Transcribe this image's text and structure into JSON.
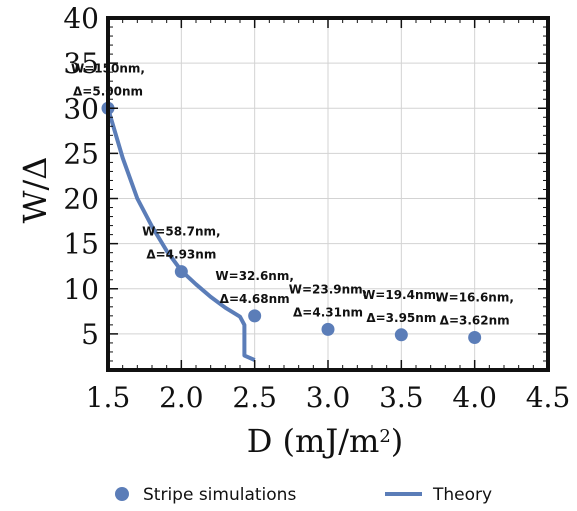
{
  "chart_data": {
    "type": "scatter",
    "xlabel": "D (mJ/m",
    "xlabel_sup": "2",
    "xlabel_close": ")",
    "ylabel": "W/Δ",
    "xlim": [
      1.5,
      4.5
    ],
    "ylim": [
      1,
      40
    ],
    "x_ticks": [
      "1.5",
      "2.0",
      "2.5",
      "3.0",
      "3.5",
      "4.0",
      "4.5"
    ],
    "y_ticks": [
      "5",
      "10",
      "15",
      "20",
      "25",
      "30",
      "35",
      "40"
    ],
    "grid": true,
    "legend_position": "bottom",
    "colors": {
      "series": "#5b7db8",
      "axis": "#111111",
      "grid": "#d3d3d3"
    },
    "series": [
      {
        "name": "Stripe simulations",
        "kind": "scatter",
        "points": [
          {
            "x": 1.5,
            "y": 30.0,
            "label_1": "W=150nm,",
            "label_2": "Δ=5.00nm"
          },
          {
            "x": 2.0,
            "y": 11.9,
            "label_1": "W=58.7nm,",
            "label_2": "Δ=4.93nm"
          },
          {
            "x": 2.5,
            "y": 7.0,
            "label_1": "W=32.6nm,",
            "label_2": "Δ=4.68nm"
          },
          {
            "x": 3.0,
            "y": 5.5,
            "label_1": "W=23.9nm,",
            "label_2": "Δ=4.31nm"
          },
          {
            "x": 3.5,
            "y": 4.9,
            "label_1": "W=19.4nm,",
            "label_2": "Δ=3.95nm"
          },
          {
            "x": 4.0,
            "y": 4.6,
            "label_1": "W=16.6nm,",
            "label_2": "Δ=3.62nm"
          }
        ]
      },
      {
        "name": "Theory",
        "kind": "line",
        "points": [
          {
            "x": 1.5,
            "y": 30.0
          },
          {
            "x": 1.6,
            "y": 24.5
          },
          {
            "x": 1.7,
            "y": 20.0
          },
          {
            "x": 1.8,
            "y": 16.9
          },
          {
            "x": 1.9,
            "y": 14.2
          },
          {
            "x": 2.0,
            "y": 12.0
          },
          {
            "x": 2.1,
            "y": 10.5
          },
          {
            "x": 2.2,
            "y": 9.1
          },
          {
            "x": 2.3,
            "y": 7.9
          },
          {
            "x": 2.4,
            "y": 6.9
          },
          {
            "x": 2.43,
            "y": 6.0
          },
          {
            "x": 2.43,
            "y": 2.6
          },
          {
            "x": 2.5,
            "y": 2.1
          }
        ]
      }
    ]
  }
}
